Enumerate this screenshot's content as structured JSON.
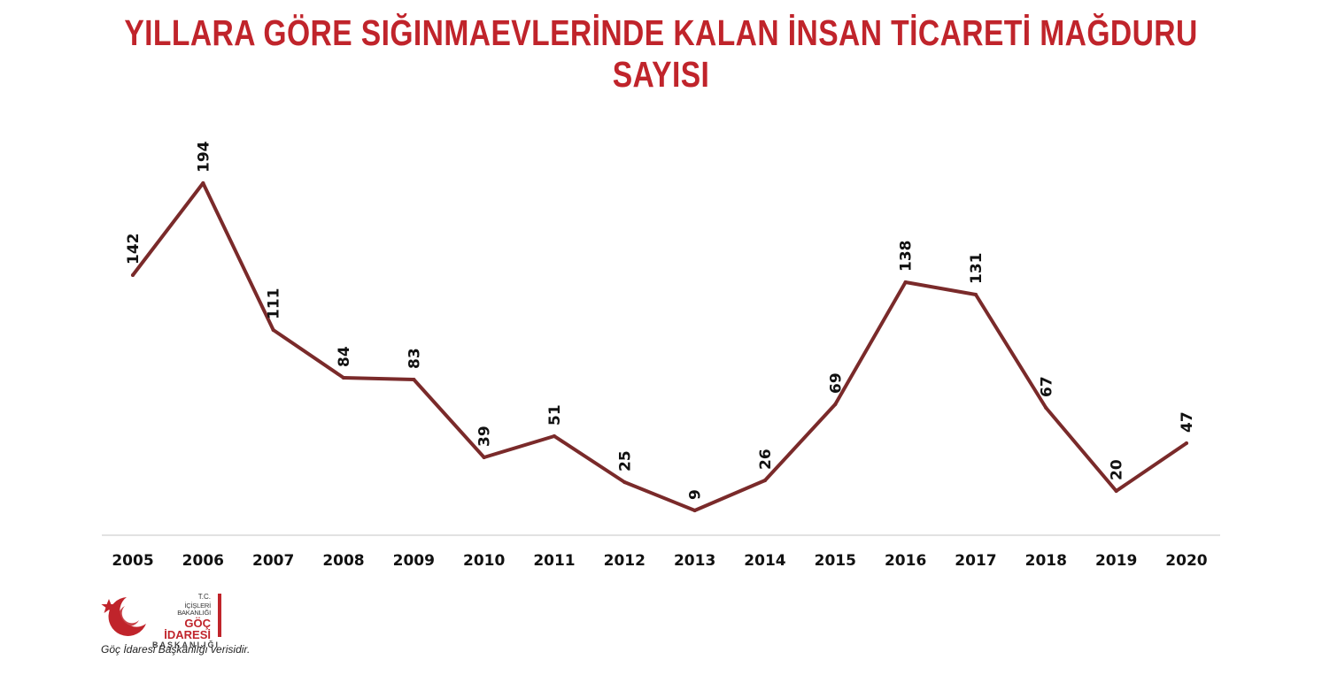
{
  "colors": {
    "title": "#c0242b",
    "line": "#7a2a2a",
    "axis": "#d9d9d9",
    "brand": "#c0242b"
  },
  "chart_data": {
    "type": "line",
    "title": "YILLARA GÖRE SIĞINMAEVLERİNDE KALAN İNSAN TİCARETİ MAĞDURU SAYISI",
    "xlabel": "",
    "ylabel": "",
    "categories": [
      "2005",
      "2006",
      "2007",
      "2008",
      "2009",
      "2010",
      "2011",
      "2012",
      "2013",
      "2014",
      "2015",
      "2016",
      "2017",
      "2018",
      "2019",
      "2020"
    ],
    "values": [
      142,
      194,
      111,
      84,
      83,
      39,
      51,
      25,
      9,
      26,
      69,
      138,
      131,
      67,
      20,
      47
    ],
    "ylim": [
      0,
      200
    ],
    "grid": false,
    "legend": "none"
  },
  "logo": {
    "line1": "T.C.",
    "line2": "İÇİŞLERİ BAKANLIĞI",
    "line3": "GÖÇ İDARESİ",
    "line4": "BAŞKANLIĞI",
    "icon": "crescent-star-icon"
  },
  "source_note": "Göç İdaresi Başkanlığı verisidir."
}
